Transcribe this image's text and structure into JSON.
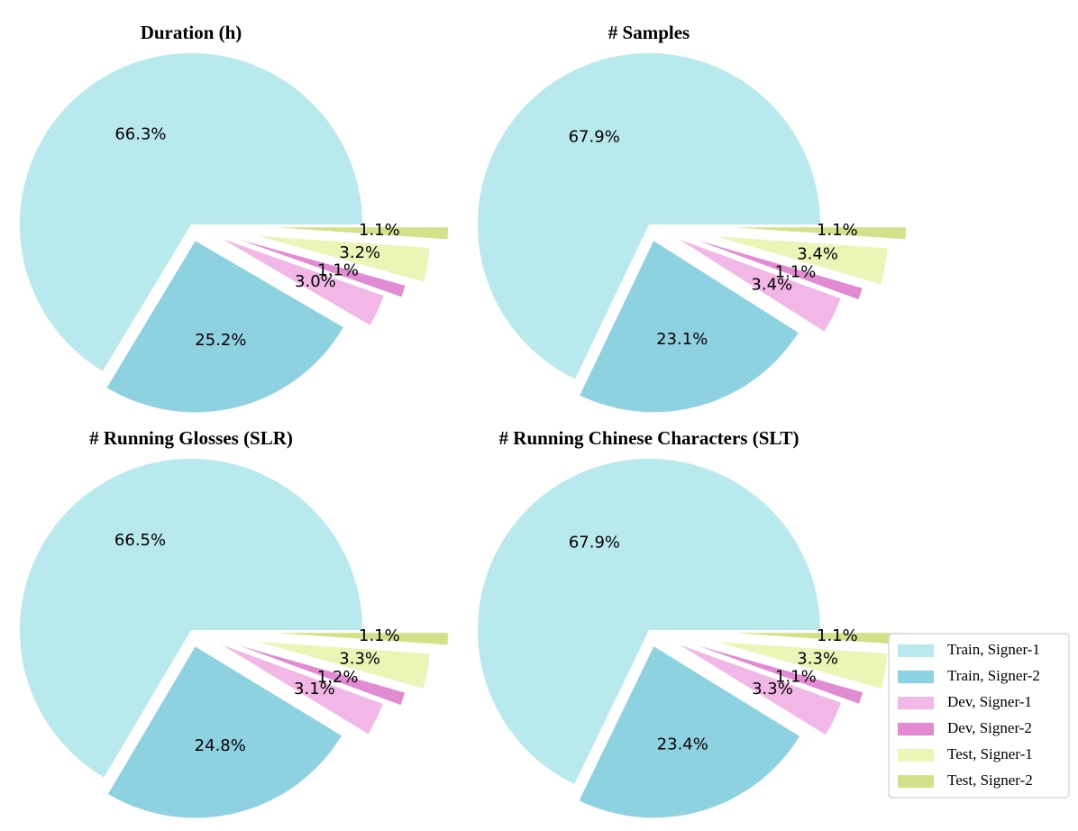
{
  "chart_data": [
    {
      "type": "pie",
      "title": "Duration (h)",
      "categories": [
        "Train, Signer-1",
        "Train, Signer-2",
        "Dev, Signer-1",
        "Dev, Signer-2",
        "Test, Signer-1",
        "Test, Signer-2"
      ],
      "values": [
        66.3,
        25.2,
        3.0,
        1.1,
        3.2,
        1.1
      ],
      "labels": [
        "66.3%",
        "25.2%",
        "3.0%",
        "1.1%",
        "3.2%",
        "1.1%"
      ]
    },
    {
      "type": "pie",
      "title": "# Samples",
      "categories": [
        "Train, Signer-1",
        "Train, Signer-2",
        "Dev, Signer-1",
        "Dev, Signer-2",
        "Test, Signer-1",
        "Test, Signer-2"
      ],
      "values": [
        67.9,
        23.1,
        3.4,
        1.1,
        3.4,
        1.1
      ],
      "labels": [
        "67.9%",
        "23.1%",
        "3.4%",
        "1.1%",
        "3.4%",
        "1.1%"
      ]
    },
    {
      "type": "pie",
      "title": "# Running Glosses (SLR)",
      "categories": [
        "Train, Signer-1",
        "Train, Signer-2",
        "Dev, Signer-1",
        "Dev, Signer-2",
        "Test, Signer-1",
        "Test, Signer-2"
      ],
      "values": [
        66.5,
        24.8,
        3.1,
        1.2,
        3.3,
        1.1
      ],
      "labels": [
        "66.5%",
        "24.8%",
        "3.1%",
        "1.2%",
        "3.3%",
        "1.1%"
      ]
    },
    {
      "type": "pie",
      "title": "# Running Chinese Characters (SLT)",
      "categories": [
        "Train, Signer-1",
        "Train, Signer-2",
        "Dev, Signer-1",
        "Dev, Signer-2",
        "Test, Signer-1",
        "Test, Signer-2"
      ],
      "values": [
        67.9,
        23.4,
        3.3,
        1.1,
        3.3,
        1.1
      ],
      "labels": [
        "67.9%",
        "23.4%",
        "3.3%",
        "1.1%",
        "3.3%",
        "1.1%"
      ]
    }
  ],
  "legend": {
    "placement": "bottom-right",
    "entries": [
      "Train, Signer-1",
      "Train, Signer-2",
      "Dev, Signer-1",
      "Dev, Signer-2",
      "Test, Signer-1",
      "Test, Signer-2"
    ]
  },
  "colors": [
    "#b7e9ed",
    "#8ed2e2",
    "#f2b6e7",
    "#e28bd3",
    "#eaf5b6",
    "#d2e18a"
  ],
  "start_angle_deg": 0,
  "direction": "counterclockwise",
  "explode": [
    0,
    0.1,
    0.2,
    0.3,
    0.4,
    0.5
  ]
}
